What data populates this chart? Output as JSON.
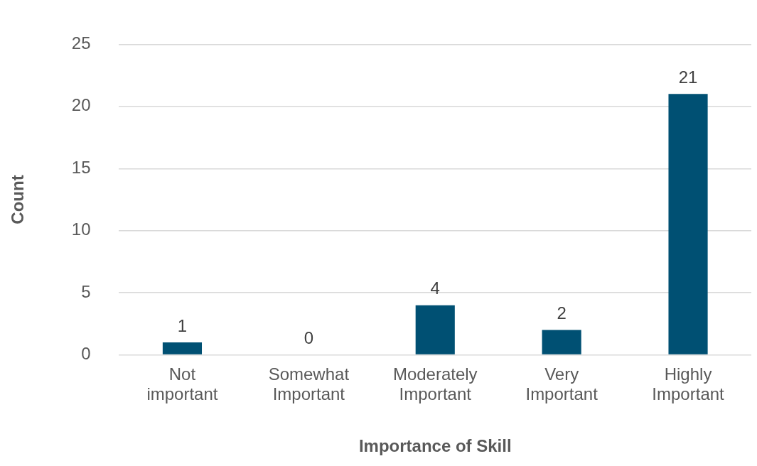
{
  "chart_data": {
    "type": "bar",
    "xlabel": "Importance of Skill",
    "ylabel": "Count",
    "categories": [
      "Not important",
      "Somewhat Important",
      "Moderately Important",
      "Very Important",
      "Highly Important"
    ],
    "values": [
      1,
      0,
      4,
      2,
      21
    ],
    "color": "#005073",
    "ylim": [
      0,
      25
    ],
    "yticks": [
      0,
      5,
      10,
      15,
      20,
      25
    ],
    "grid": "y",
    "legend": false,
    "data_labels": true
  }
}
